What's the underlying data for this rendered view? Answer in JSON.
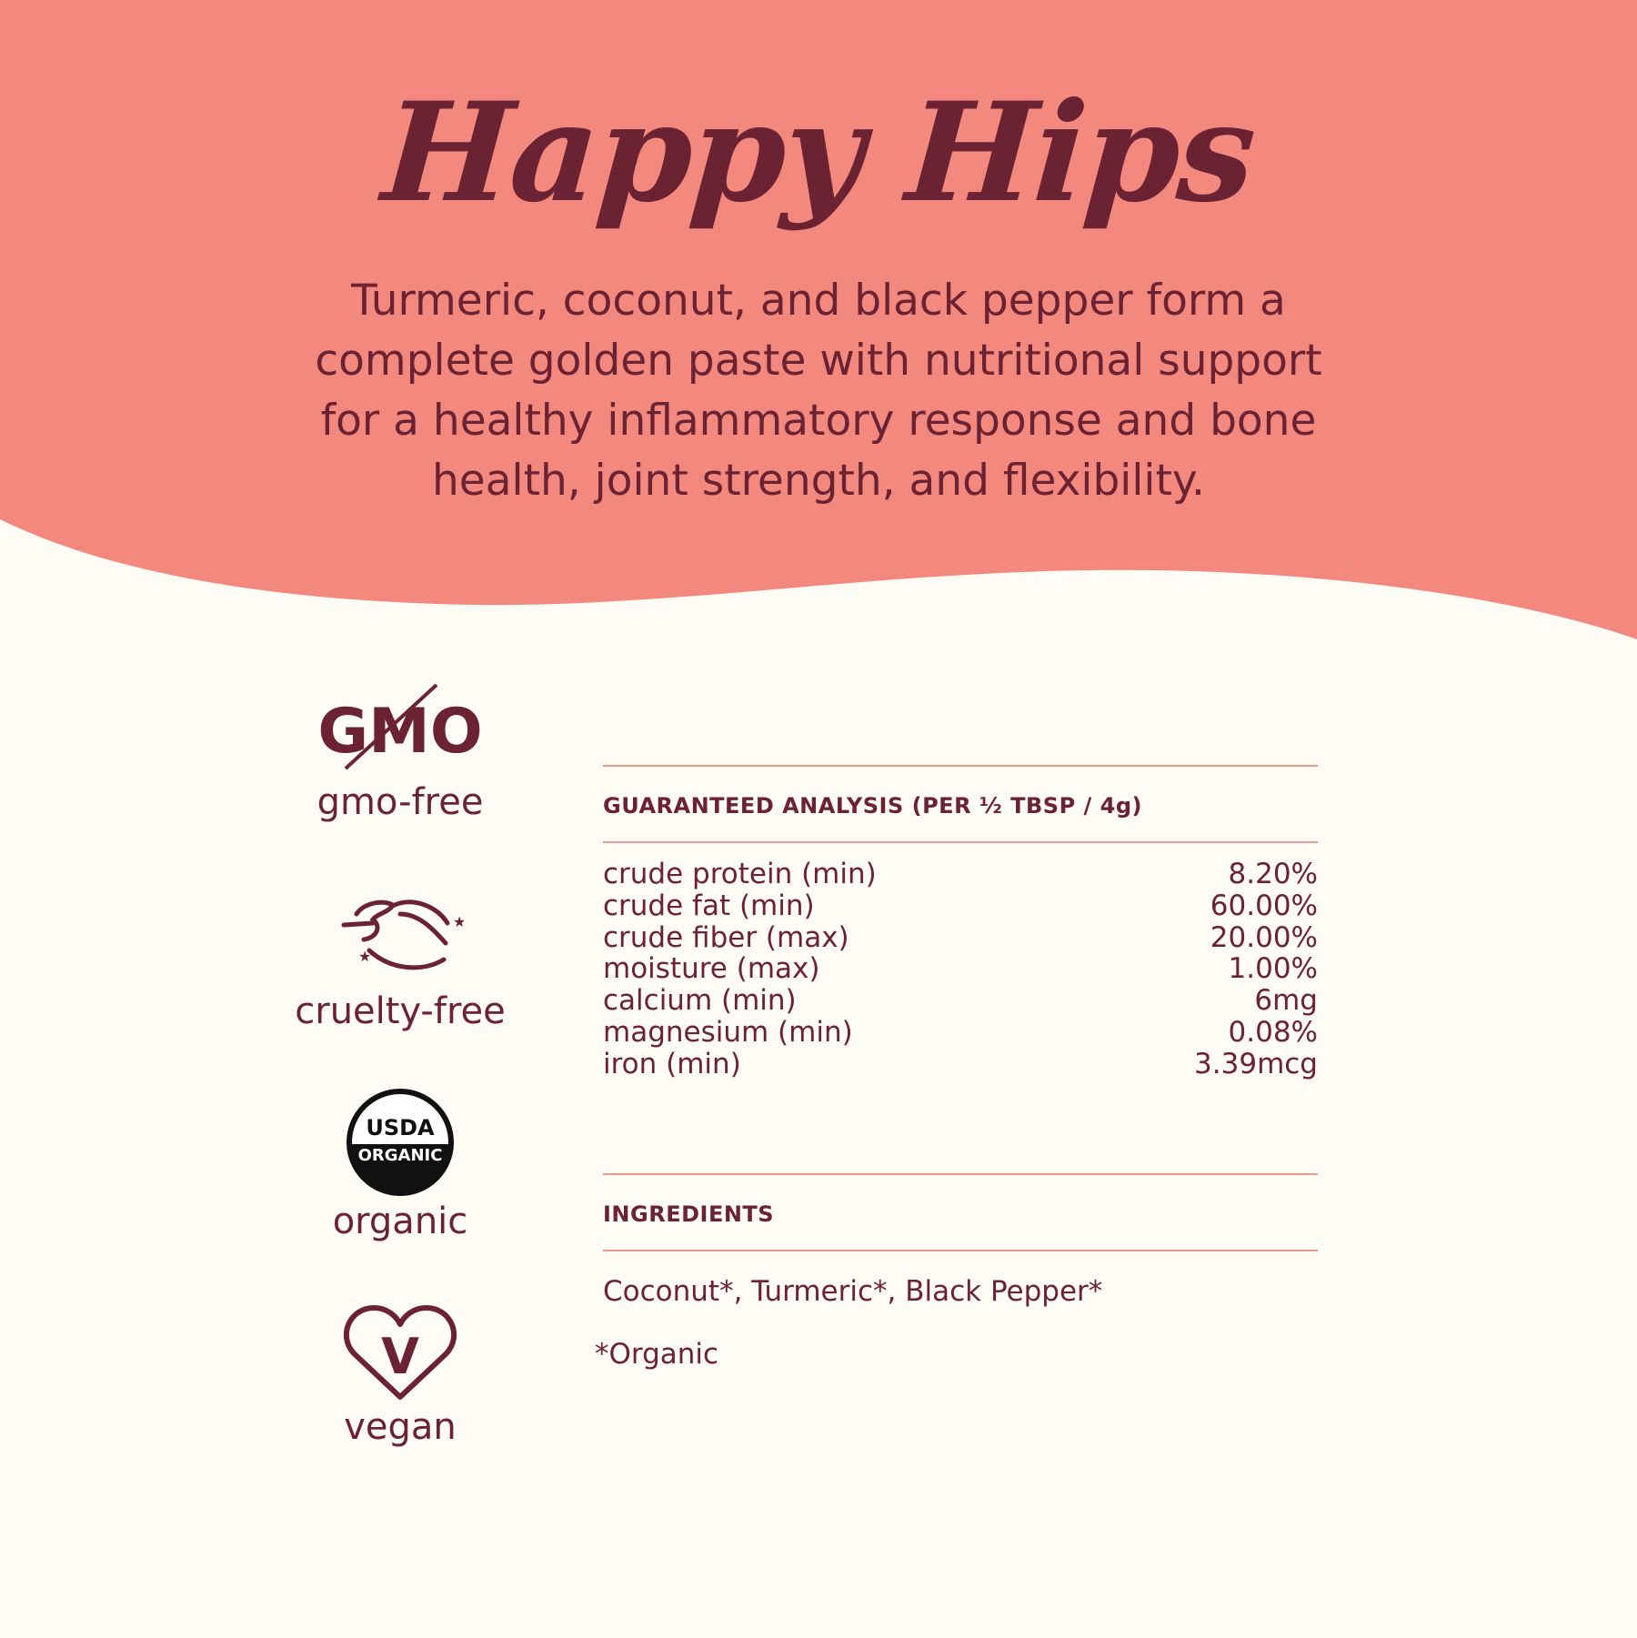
{
  "colors": {
    "banner": "#F3887E",
    "background": "#FEFCF4",
    "text": "#6B2233",
    "rule": "#E89A90"
  },
  "header": {
    "title": "Happy Hips",
    "description_lines": [
      "Turmeric, coconut, and black pepper form a",
      "complete golden paste with nutritional support",
      "for a healthy inflammatory response and bone",
      "health, joint strength, and flexibility."
    ]
  },
  "badges": [
    {
      "icon": "gmo-crossed-icon",
      "logo_text": "GMO",
      "label": "gmo-free"
    },
    {
      "icon": "leaping-bunny-icon",
      "label": "cruelty-free"
    },
    {
      "icon": "usda-organic-seal-icon",
      "logo_text": "USDA",
      "logo_text2": "ORGANIC",
      "label": "organic"
    },
    {
      "icon": "vegan-heart-icon",
      "logo_text": "V",
      "label": "vegan"
    }
  ],
  "analysis": {
    "heading": "GUARANTEED ANALYSIS (PER ½ TBSP / 4g)",
    "rows": [
      {
        "name": "crude protein (min)",
        "value": "8.20%"
      },
      {
        "name": "crude fat (min)",
        "value": "60.00%"
      },
      {
        "name": "crude fiber (max)",
        "value": "20.00%"
      },
      {
        "name": "moisture (max)",
        "value": "1.00%"
      },
      {
        "name": "calcium (min)",
        "value": "6mg"
      },
      {
        "name": "magnesium (min)",
        "value": "0.08%"
      },
      {
        "name": "iron (min)",
        "value": "3.39mcg"
      }
    ]
  },
  "ingredients": {
    "heading": "INGREDIENTS",
    "list": "Coconut*, Turmeric*, Black Pepper*",
    "note": "*Organic"
  }
}
